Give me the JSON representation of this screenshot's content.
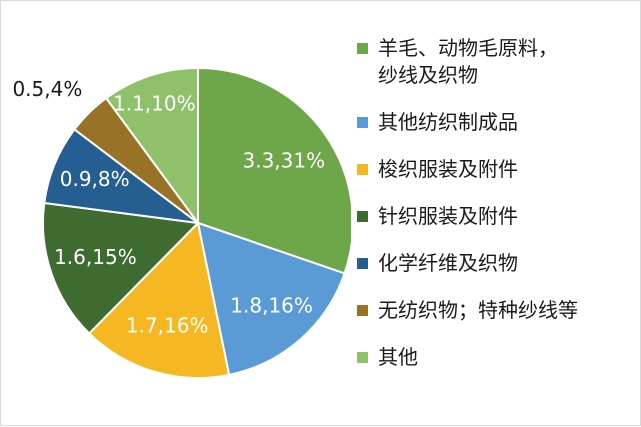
{
  "chart_data": {
    "type": "pie",
    "categories": [
      "羊毛、动物毛原料，\n纱线及织物",
      "其他纺织制成品",
      "梭织服装及附件",
      "针织服装及附件",
      "化学纤维及织物",
      "无纺织物；特种纱线等",
      "其他"
    ],
    "values": [
      3.3,
      1.8,
      1.7,
      1.6,
      0.9,
      0.5,
      1.1
    ],
    "data_labels": [
      "3.3,31%",
      "1.8,16%",
      "1.7,16%",
      "1.6,15%",
      "0.9,8%",
      "0.5,4%",
      "1.1,10%"
    ],
    "colors": [
      "#6ea64a",
      "#5b9bd5",
      "#f5b822",
      "#3e6b2f",
      "#255e91",
      "#987227",
      "#8fc06a"
    ],
    "legend": "right",
    "start_angle": "12-o'clock",
    "direction": "clockwise"
  }
}
